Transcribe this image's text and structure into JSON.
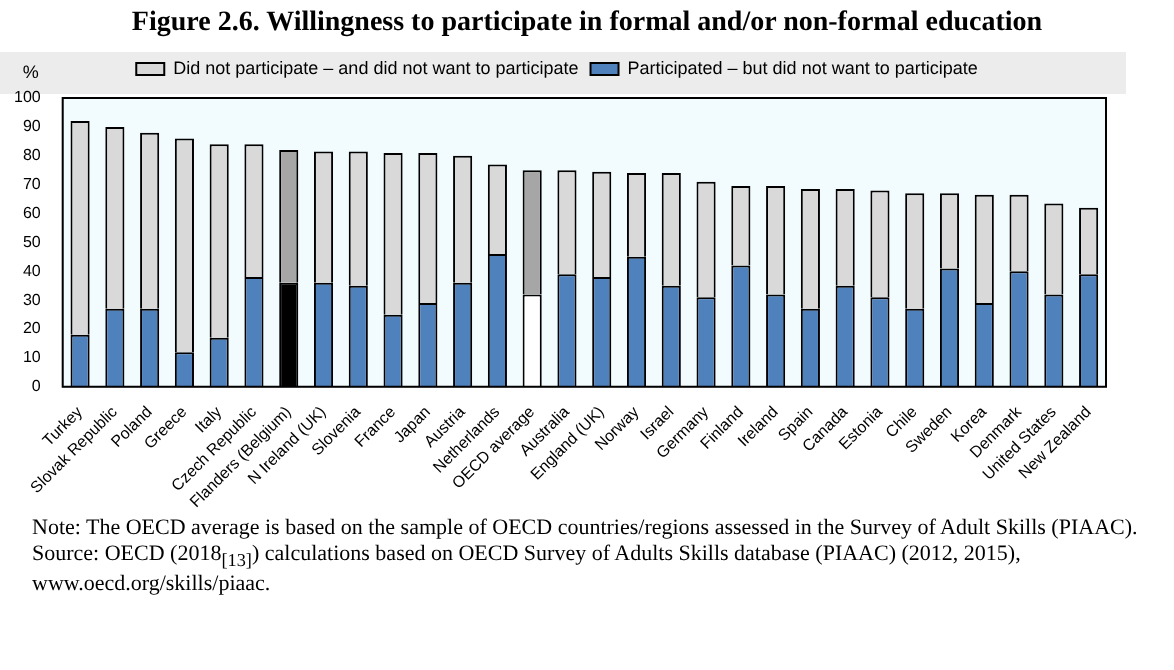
{
  "chart_data": {
    "type": "bar",
    "title": "Figure 2.6. Willingness to participate in formal and/or non-formal education",
    "ylabel": "%",
    "categories": [
      "Turkey",
      "Slovak Republic",
      "Poland",
      "Greece",
      "Italy",
      "Czech Republic",
      "Flanders (Belgium)",
      "N Ireland (UK)",
      "Slovenia",
      "France",
      "Japan",
      "Austria",
      "Netherlands",
      "OECD average",
      "Australia",
      "England (UK)",
      "Norway",
      "Israel",
      "Germany",
      "Finland",
      "Ireland",
      "Spain",
      "Canada",
      "Estonia",
      "Chile",
      "Sweden",
      "Korea",
      "Denmark",
      "United States",
      "New Zealand"
    ],
    "stacked": true,
    "series": [
      {
        "name": "Participated – but did not want to participate",
        "color": "#4f81bd",
        "colors": [
          "#4f81bd",
          "#4f81bd",
          "#4f81bd",
          "#4f81bd",
          "#4f81bd",
          "#4f81bd",
          "#000000",
          "#4f81bd",
          "#4f81bd",
          "#4f81bd",
          "#4f81bd",
          "#4f81bd",
          "#4f81bd",
          "#ffffff",
          "#4f81bd",
          "#4f81bd",
          "#4f81bd",
          "#4f81bd",
          "#4f81bd",
          "#4f81bd",
          "#4f81bd",
          "#4f81bd",
          "#4f81bd",
          "#4f81bd",
          "#4f81bd",
          "#4f81bd",
          "#4f81bd",
          "#4f81bd",
          "#4f81bd",
          "#4f81bd"
        ],
        "values": [
          18,
          27,
          27,
          12,
          17,
          38,
          36,
          36,
          35,
          25,
          29,
          36,
          46,
          32,
          39,
          38,
          45,
          35,
          31,
          42,
          32,
          27,
          35,
          31,
          27,
          41,
          29,
          40,
          32,
          39
        ]
      },
      {
        "name": "Did not participate – and did not want to participate",
        "color": "#d9d9d9",
        "colors": [
          "#d9d9d9",
          "#d9d9d9",
          "#d9d9d9",
          "#d9d9d9",
          "#d9d9d9",
          "#d9d9d9",
          "#a6a6a6",
          "#d9d9d9",
          "#d9d9d9",
          "#d9d9d9",
          "#d9d9d9",
          "#d9d9d9",
          "#d9d9d9",
          "#a6a6a6",
          "#d9d9d9",
          "#d9d9d9",
          "#d9d9d9",
          "#d9d9d9",
          "#d9d9d9",
          "#d9d9d9",
          "#d9d9d9",
          "#d9d9d9",
          "#d9d9d9",
          "#d9d9d9",
          "#d9d9d9",
          "#d9d9d9",
          "#d9d9d9",
          "#d9d9d9",
          "#d9d9d9",
          "#d9d9d9"
        ],
        "values": [
          74,
          63,
          61,
          74,
          67,
          46,
          46,
          45.5,
          46.5,
          56,
          52,
          44,
          31,
          43,
          36,
          36.5,
          29,
          39,
          40,
          27.5,
          37.5,
          41.5,
          33.5,
          37,
          40,
          26,
          37.5,
          26.5,
          31.5,
          23
        ]
      }
    ],
    "ylim": [
      0,
      100
    ],
    "yticks": [
      0,
      10,
      20,
      30,
      40,
      50,
      60,
      70,
      80,
      90,
      100
    ],
    "grid": false,
    "legend": "top",
    "annotations": [
      "Note: The OECD average is based on the sample of OECD countries/regions assessed in the Survey of Adult Skills (PIAAC).",
      "Source: OECD (2018$_{[13]}$) calculations based on OECD Survey of Adults Skills database (PIAAC) (2012, 2015), www.oecd.org/skills/piaac."
    ]
  }
}
